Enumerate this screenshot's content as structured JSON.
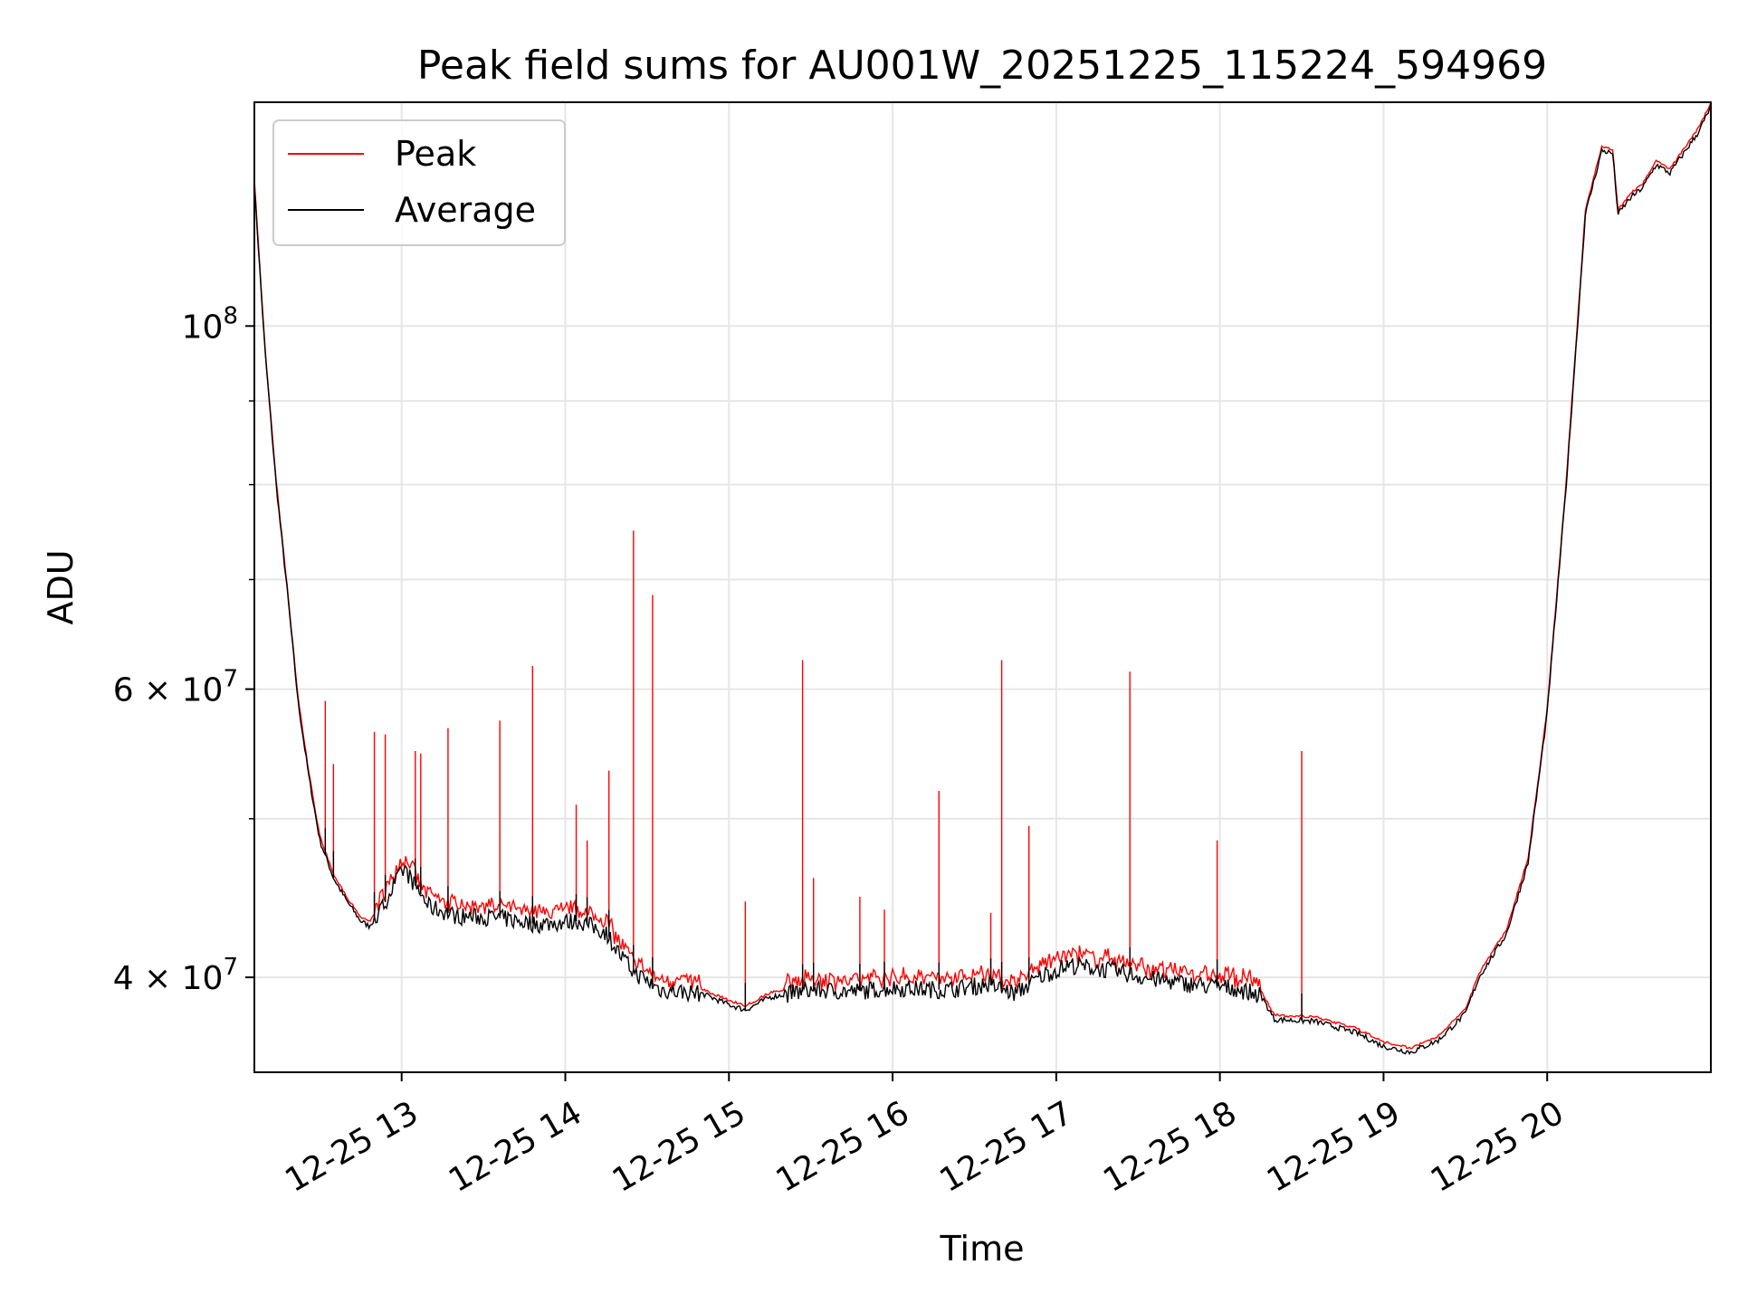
{
  "chart_data": {
    "type": "line",
    "title": "Peak field sums for AU001W_20251225_115224_594969",
    "xlabel": "Time",
    "ylabel": "ADU",
    "y_scale": "log",
    "ylim": [
      35000000,
      137000000
    ],
    "xlim": [
      "2025-12-25 12:06",
      "2025-12-25 21:00"
    ],
    "grid": true,
    "legend_position": "upper-left",
    "x_ticks": [
      {
        "t": "2025-12-25 13:00",
        "label": "12-25 13"
      },
      {
        "t": "2025-12-25 14:00",
        "label": "12-25 14"
      },
      {
        "t": "2025-12-25 15:00",
        "label": "12-25 15"
      },
      {
        "t": "2025-12-25 16:00",
        "label": "12-25 16"
      },
      {
        "t": "2025-12-25 17:00",
        "label": "12-25 17"
      },
      {
        "t": "2025-12-25 18:00",
        "label": "12-25 18"
      },
      {
        "t": "2025-12-25 19:00",
        "label": "12-25 19"
      },
      {
        "t": "2025-12-25 20:00",
        "label": "12-25 20"
      }
    ],
    "y_major_ticks": [
      {
        "value": 40000000,
        "base": "4 × 10",
        "exp": "7"
      },
      {
        "value": 60000000,
        "base": "6 × 10",
        "exp": "7"
      },
      {
        "value": 100000000,
        "base": "10",
        "exp": "8"
      }
    ],
    "y_minor_ticks": [
      50000000,
      70000000,
      80000000,
      90000000
    ],
    "series": [
      {
        "name": "Peak",
        "color": "#ff0000",
        "spikes": [
          [
            "2025-12-25 12:32",
            59000000
          ],
          [
            "2025-12-25 12:35",
            54000000
          ],
          [
            "2025-12-25 12:50",
            56500000
          ],
          [
            "2025-12-25 12:54",
            56300000
          ],
          [
            "2025-12-25 13:05",
            55000000
          ],
          [
            "2025-12-25 13:07",
            54800000
          ],
          [
            "2025-12-25 13:17",
            56800000
          ],
          [
            "2025-12-25 13:36",
            57400000
          ],
          [
            "2025-12-25 13:48",
            62000000
          ],
          [
            "2025-12-25 14:04",
            51000000
          ],
          [
            "2025-12-25 14:08",
            48500000
          ],
          [
            "2025-12-25 14:16",
            53500000
          ],
          [
            "2025-12-25 14:25",
            75000000
          ],
          [
            "2025-12-25 14:32",
            68500000
          ],
          [
            "2025-12-25 15:06",
            44500000
          ],
          [
            "2025-12-25 15:27",
            62500000
          ],
          [
            "2025-12-25 15:31",
            46000000
          ],
          [
            "2025-12-25 15:48",
            44800000
          ],
          [
            "2025-12-25 15:57",
            44000000
          ],
          [
            "2025-12-25 16:17",
            52000000
          ],
          [
            "2025-12-25 16:36",
            43800000
          ],
          [
            "2025-12-25 16:40",
            62500000
          ],
          [
            "2025-12-25 16:50",
            49500000
          ],
          [
            "2025-12-25 17:27",
            61500000
          ],
          [
            "2025-12-25 17:59",
            48500000
          ],
          [
            "2025-12-25 18:30",
            55000000
          ]
        ]
      },
      {
        "name": "Average",
        "color": "#000000",
        "points": [
          [
            "2025-12-25 12:06",
            122000000
          ],
          [
            "2025-12-25 12:10",
            96000000
          ],
          [
            "2025-12-25 12:14",
            80000000
          ],
          [
            "2025-12-25 12:18",
            69000000
          ],
          [
            "2025-12-25 12:22",
            59000000
          ],
          [
            "2025-12-25 12:26",
            53000000
          ],
          [
            "2025-12-25 12:30",
            48500000
          ],
          [
            "2025-12-25 12:35",
            46000000
          ],
          [
            "2025-12-25 12:40",
            44500000
          ],
          [
            "2025-12-25 12:45",
            43300000
          ],
          [
            "2025-12-25 12:48",
            43000000
          ],
          [
            "2025-12-25 12:52",
            43800000
          ],
          [
            "2025-12-25 12:57",
            45500000
          ],
          [
            "2025-12-25 13:01",
            46600000
          ],
          [
            "2025-12-25 13:05",
            45500000
          ],
          [
            "2025-12-25 13:10",
            44200000
          ],
          [
            "2025-12-25 13:20",
            43600000
          ],
          [
            "2025-12-25 13:35",
            43500000
          ],
          [
            "2025-12-25 13:50",
            43100000
          ],
          [
            "2025-12-25 14:05",
            43300000
          ],
          [
            "2025-12-25 14:15",
            42600000
          ],
          [
            "2025-12-25 14:20",
            41300000
          ],
          [
            "2025-12-25 14:25",
            40300000
          ],
          [
            "2025-12-25 14:35",
            39300000
          ],
          [
            "2025-12-25 14:50",
            39100000
          ],
          [
            "2025-12-25 15:00",
            38500000
          ],
          [
            "2025-12-25 15:06",
            38200000
          ],
          [
            "2025-12-25 15:15",
            38900000
          ],
          [
            "2025-12-25 15:30",
            39300000
          ],
          [
            "2025-12-25 15:45",
            39200000
          ],
          [
            "2025-12-25 16:00",
            39400000
          ],
          [
            "2025-12-25 16:20",
            39300000
          ],
          [
            "2025-12-25 16:35",
            39600000
          ],
          [
            "2025-12-25 16:45",
            39100000
          ],
          [
            "2025-12-25 16:55",
            40100000
          ],
          [
            "2025-12-25 17:05",
            40700000
          ],
          [
            "2025-12-25 17:20",
            40400000
          ],
          [
            "2025-12-25 17:35",
            39900000
          ],
          [
            "2025-12-25 17:50",
            39600000
          ],
          [
            "2025-12-25 18:05",
            39400000
          ],
          [
            "2025-12-25 18:15",
            39000000
          ],
          [
            "2025-12-25 18:20",
            37700000
          ],
          [
            "2025-12-25 18:35",
            37600000
          ],
          [
            "2025-12-25 18:50",
            37000000
          ],
          [
            "2025-12-25 19:00",
            36300000
          ],
          [
            "2025-12-25 19:10",
            36000000
          ],
          [
            "2025-12-25 19:20",
            36600000
          ],
          [
            "2025-12-25 19:30",
            38000000
          ],
          [
            "2025-12-25 19:35",
            40000000
          ],
          [
            "2025-12-25 19:45",
            42500000
          ],
          [
            "2025-12-25 19:53",
            47000000
          ],
          [
            "2025-12-25 20:00",
            58000000
          ],
          [
            "2025-12-25 20:07",
            80000000
          ],
          [
            "2025-12-25 20:14",
            117000000
          ],
          [
            "2025-12-25 20:20",
            128000000
          ],
          [
            "2025-12-25 20:24",
            127500000
          ],
          [
            "2025-12-25 20:26",
            117000000
          ],
          [
            "2025-12-25 20:30",
            119500000
          ],
          [
            "2025-12-25 20:35",
            121500000
          ],
          [
            "2025-12-25 20:40",
            125500000
          ],
          [
            "2025-12-25 20:45",
            124000000
          ],
          [
            "2025-12-25 20:50",
            127500000
          ],
          [
            "2025-12-25 20:55",
            131000000
          ],
          [
            "2025-12-25 21:00",
            136000000
          ]
        ]
      }
    ]
  }
}
